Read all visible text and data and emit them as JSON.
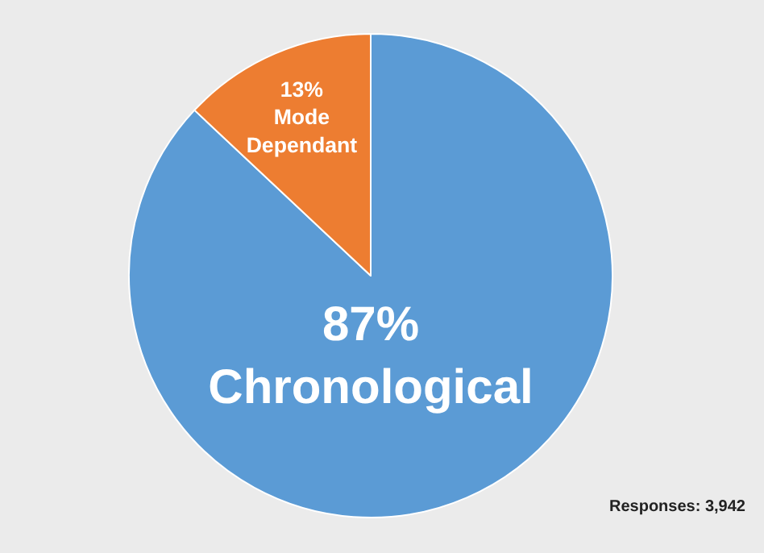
{
  "chart_data": {
    "type": "pie",
    "categories": [
      "Chronological",
      "Mode Dependant"
    ],
    "values": [
      87,
      13
    ],
    "colors": [
      "#5b9bd5",
      "#ed7d31"
    ],
    "value_labels": [
      "87%",
      "13%"
    ],
    "annotations": [
      "Responses: 3,942"
    ],
    "legend": false
  }
}
